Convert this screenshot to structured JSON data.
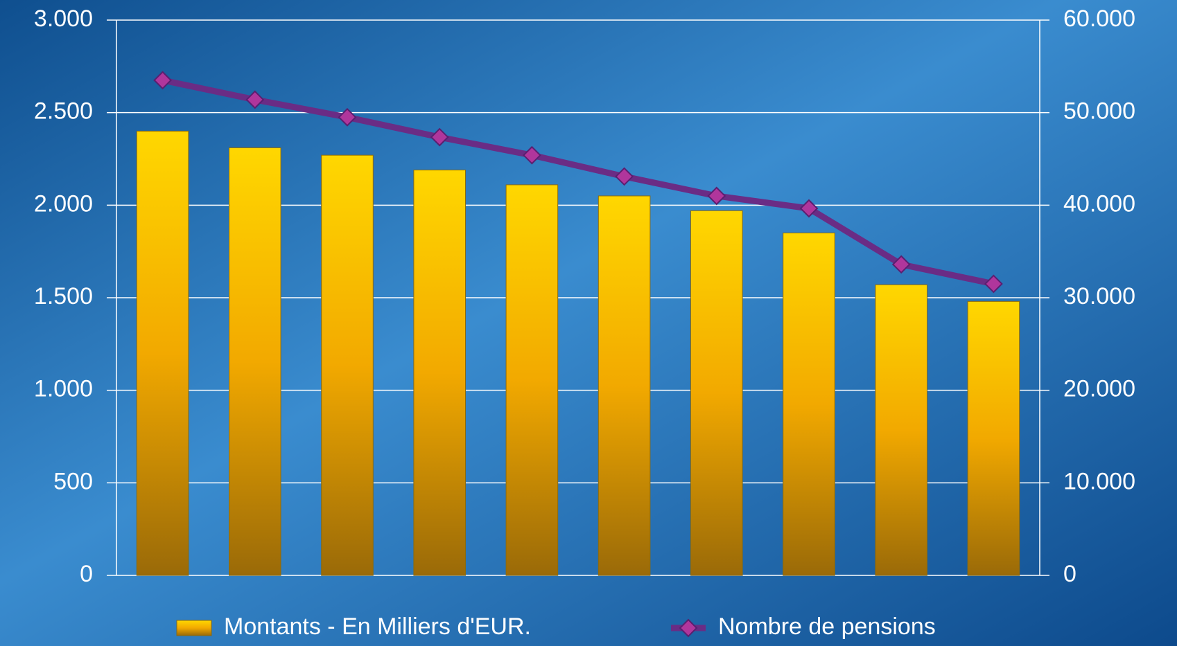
{
  "chart_data": {
    "type": "bar",
    "categories": [
      null,
      null,
      null,
      null,
      null,
      null,
      null,
      null,
      null,
      null
    ],
    "series": [
      {
        "name": "Montants - En Milliers d'EUR.",
        "type": "bar",
        "color": "#f5b400",
        "values": [
          2400,
          2310,
          2270,
          2190,
          2110,
          2050,
          1970,
          1850,
          1570,
          1480
        ]
      },
      {
        "name": "Nombre de pensions",
        "type": "line",
        "axis": "y2",
        "color": "#6a2c85",
        "marker_color": "#b0369c",
        "values": [
          53500,
          51400,
          49500,
          47350,
          45400,
          43100,
          41000,
          39650,
          33600,
          31500
        ]
      }
    ],
    "ylim": [
      0,
      3000
    ],
    "yticks": [
      0,
      500,
      {
        "value": 1000,
        "label": "1.000"
      },
      {
        "value": 1500,
        "label": "1.500"
      },
      {
        "value": 2000,
        "label": "2.000"
      },
      {
        "value": 2500,
        "label": "2.500"
      },
      {
        "value": 3000,
        "label": "3.000"
      }
    ],
    "y2lim": [
      0,
      60000
    ],
    "y2ticks": [
      0,
      {
        "value": 10000,
        "label": "10.000"
      },
      {
        "value": 20000,
        "label": "20.000"
      },
      {
        "value": 30000,
        "label": "30.000"
      },
      {
        "value": 40000,
        "label": "40.000"
      },
      {
        "value": 50000,
        "label": "50.000"
      },
      {
        "value": 60000,
        "label": "60.000"
      }
    ],
    "grid": true,
    "legend": "bottom"
  }
}
